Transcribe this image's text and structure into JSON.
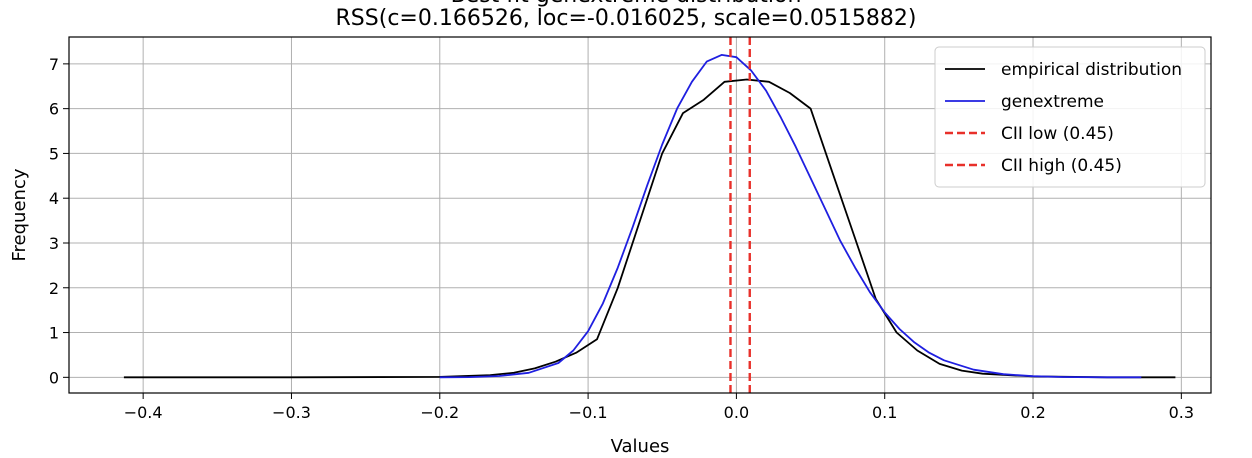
{
  "title_line1": "Best fit genextreme distribution",
  "title_line2": "RSS(c=0.166526, loc=-0.016025, scale=0.0515882)",
  "chart_data": {
    "type": "line",
    "title": "RSS(c=0.166526, loc=-0.016025, scale=0.0515882)",
    "xlabel": "Values",
    "ylabel": "Frequency",
    "xlim": [
      -0.45,
      0.32
    ],
    "ylim": [
      -0.35,
      7.6
    ],
    "xticks": [
      -0.4,
      -0.3,
      -0.2,
      -0.1,
      0.0,
      0.1,
      0.2,
      0.3
    ],
    "xtick_labels": [
      "−0.4",
      "−0.3",
      "−0.2",
      "−0.1",
      "0.0",
      "0.1",
      "0.2",
      "0.3"
    ],
    "yticks": [
      0,
      1,
      2,
      3,
      4,
      5,
      6,
      7
    ],
    "ytick_labels": [
      "0",
      "1",
      "2",
      "3",
      "4",
      "5",
      "6",
      "7"
    ],
    "grid": true,
    "legend_position": "top-right",
    "series": [
      {
        "name": "empirical distribution",
        "color": "#000000",
        "style": "solid",
        "x": [
          -0.413,
          -0.3,
          -0.2,
          -0.166,
          -0.15,
          -0.136,
          -0.122,
          -0.108,
          -0.094,
          -0.08,
          -0.065,
          -0.05,
          -0.036,
          -0.022,
          -0.008,
          0.007,
          0.022,
          0.036,
          0.05,
          0.065,
          0.08,
          0.094,
          0.108,
          0.122,
          0.137,
          0.152,
          0.166,
          0.2,
          0.25,
          0.296
        ],
        "y": [
          0.0,
          0.0,
          0.01,
          0.05,
          0.1,
          0.2,
          0.35,
          0.55,
          0.85,
          2.0,
          3.5,
          5.0,
          5.9,
          6.2,
          6.6,
          6.65,
          6.6,
          6.35,
          6.0,
          4.55,
          3.1,
          1.75,
          1.0,
          0.6,
          0.3,
          0.15,
          0.08,
          0.02,
          0.0,
          0.0
        ]
      },
      {
        "name": "genextreme",
        "color": "#1f1fe0",
        "style": "solid",
        "x": [
          -0.2,
          -0.18,
          -0.16,
          -0.14,
          -0.12,
          -0.11,
          -0.1,
          -0.09,
          -0.08,
          -0.07,
          -0.06,
          -0.05,
          -0.04,
          -0.03,
          -0.02,
          -0.01,
          0.0,
          0.01,
          0.02,
          0.03,
          0.04,
          0.05,
          0.06,
          0.07,
          0.08,
          0.09,
          0.1,
          0.11,
          0.12,
          0.13,
          0.14,
          0.16,
          0.18,
          0.2,
          0.22,
          0.25,
          0.273
        ],
        "y": [
          0.0,
          0.005,
          0.03,
          0.1,
          0.32,
          0.6,
          1.03,
          1.65,
          2.45,
          3.35,
          4.3,
          5.2,
          6.0,
          6.6,
          7.05,
          7.2,
          7.15,
          6.85,
          6.4,
          5.8,
          5.15,
          4.45,
          3.75,
          3.05,
          2.45,
          1.9,
          1.45,
          1.08,
          0.78,
          0.55,
          0.38,
          0.17,
          0.07,
          0.025,
          0.008,
          0.001,
          0.0
        ]
      }
    ],
    "vlines": [
      {
        "name": "CII low (0.45)",
        "x": -0.004,
        "color": "#e8302a",
        "style": "dashed"
      },
      {
        "name": "CII high (0.45)",
        "x": 0.009,
        "color": "#e8302a",
        "style": "dashed"
      }
    ]
  }
}
